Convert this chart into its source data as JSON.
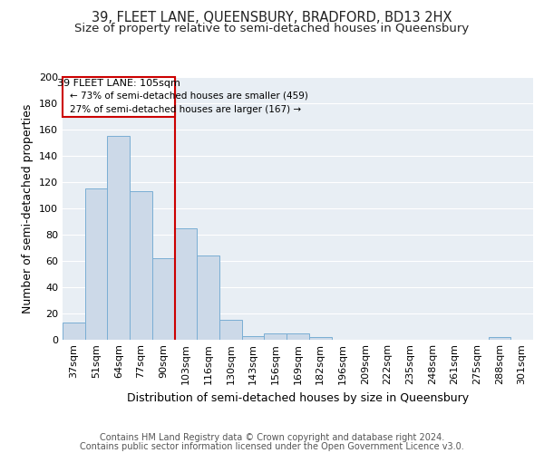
{
  "title1": "39, FLEET LANE, QUEENSBURY, BRADFORD, BD13 2HX",
  "title2": "Size of property relative to semi-detached houses in Queensbury",
  "xlabel": "Distribution of semi-detached houses by size in Queensbury",
  "ylabel": "Number of semi-detached properties",
  "categories": [
    "37sqm",
    "51sqm",
    "64sqm",
    "77sqm",
    "90sqm",
    "103sqm",
    "116sqm",
    "130sqm",
    "143sqm",
    "156sqm",
    "169sqm",
    "182sqm",
    "196sqm",
    "209sqm",
    "222sqm",
    "235sqm",
    "248sqm",
    "261sqm",
    "275sqm",
    "288sqm",
    "301sqm"
  ],
  "values": [
    13,
    115,
    155,
    113,
    62,
    85,
    64,
    15,
    3,
    5,
    5,
    2,
    0,
    0,
    0,
    0,
    0,
    0,
    0,
    2,
    0
  ],
  "bar_color": "#ccd9e8",
  "bar_edge_color": "#7aaed4",
  "subject_label": "39 FLEET LANE: 105sqm",
  "pct_smaller": "73% of semi-detached houses are smaller (459)",
  "pct_larger": "27% of semi-detached houses are larger (167)",
  "red_color": "#cc0000",
  "ylim": [
    0,
    200
  ],
  "yticks": [
    0,
    20,
    40,
    60,
    80,
    100,
    120,
    140,
    160,
    180,
    200
  ],
  "footer1": "Contains HM Land Registry data © Crown copyright and database right 2024.",
  "footer2": "Contains public sector information licensed under the Open Government Licence v3.0.",
  "bg_color": "#e8eef4",
  "grid_color": "#ffffff",
  "title1_fontsize": 10.5,
  "title2_fontsize": 9.5,
  "axis_label_fontsize": 9,
  "tick_fontsize": 8,
  "footer_fontsize": 7
}
